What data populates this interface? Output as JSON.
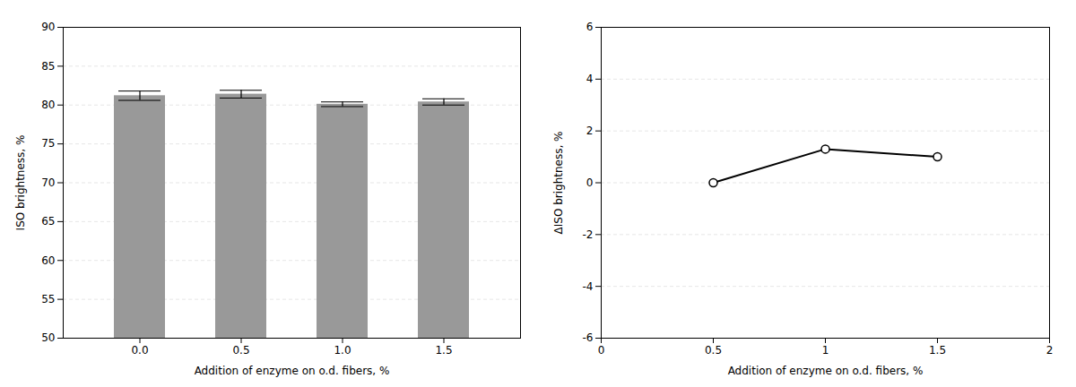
{
  "chart_data": [
    {
      "type": "bar",
      "categories": [
        "0.0",
        "0.5",
        "1.0",
        "1.5"
      ],
      "values": [
        81.2,
        81.4,
        80.1,
        80.4
      ],
      "errors": [
        0.6,
        0.5,
        0.3,
        0.4
      ],
      "color": "#999999",
      "ylim": [
        50,
        90
      ],
      "yticks": [
        50,
        55,
        60,
        65,
        70,
        75,
        80,
        85,
        90
      ],
      "ylabel": "ISO brightness, %",
      "xlabel": "Addition of enzyme on o.d. fibers, %",
      "grid": true
    },
    {
      "type": "line",
      "x": [
        0.5,
        1.0,
        1.5
      ],
      "values": [
        0.0,
        1.3,
        1.0
      ],
      "color": "#000000",
      "marker": "circle",
      "xlim": [
        0,
        2
      ],
      "ylim": [
        -6,
        6
      ],
      "xticks": [
        0,
        0.5,
        1,
        1.5,
        2
      ],
      "yticks": [
        -6,
        -4,
        -2,
        0,
        2,
        4,
        6
      ],
      "ylabel": "ΔISO brightness, %",
      "xlabel": "Addition of enzyme on o.d. fibers, %",
      "grid": true
    }
  ]
}
